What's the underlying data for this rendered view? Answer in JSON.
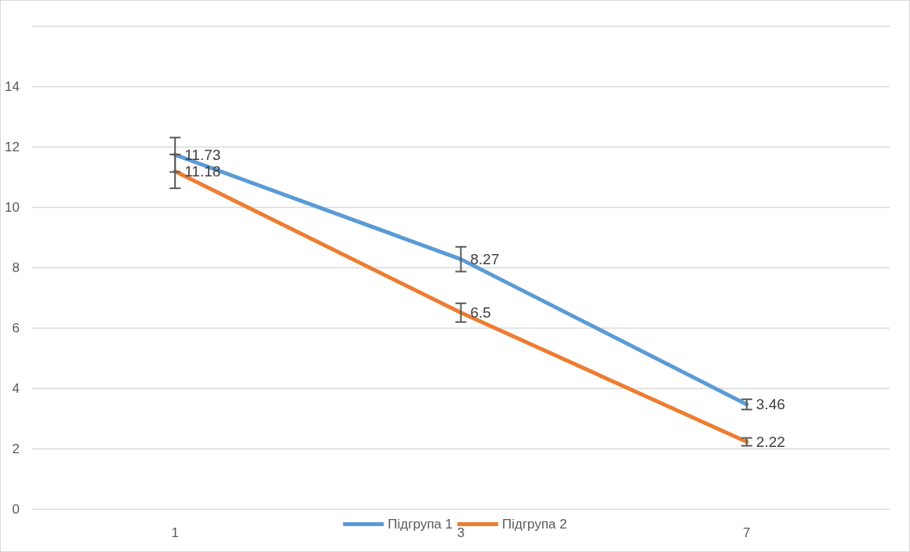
{
  "chart_data": {
    "type": "line",
    "categories": [
      "1",
      "3",
      "7"
    ],
    "series": [
      {
        "name": "Підгрупа 1",
        "color": "#5b9bd5",
        "values": [
          11.73,
          8.27,
          3.46
        ],
        "errors": [
          0.57,
          0.41,
          0.17
        ]
      },
      {
        "name": "Підгрупа 2",
        "color": "#ed7d31",
        "values": [
          11.18,
          6.5,
          2.22
        ],
        "errors": [
          0.56,
          0.31,
          0.13
        ]
      }
    ],
    "ylim": [
      0,
      16
    ],
    "yticks": [
      0,
      2,
      4,
      6,
      8,
      10,
      12,
      14,
      {
        "value": 16,
        "label": null
      }
    ],
    "grid": "y",
    "legend": "bottom",
    "marker": "none",
    "line_style": "solid",
    "data_labels": true
  }
}
